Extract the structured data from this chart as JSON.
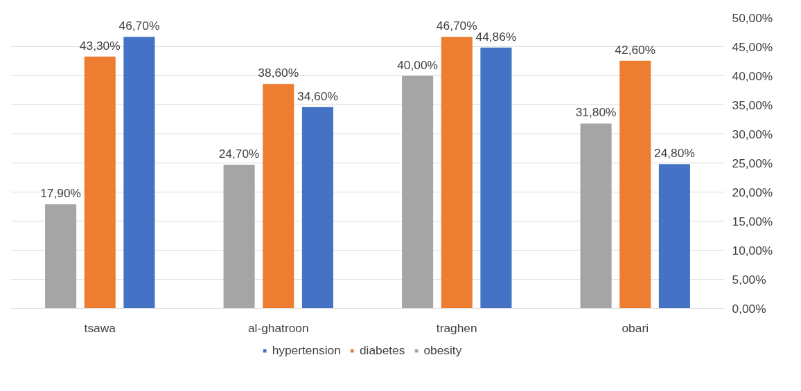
{
  "chart_data": {
    "type": "bar",
    "categories": [
      "tsawa",
      "al-ghatroon",
      "traghen",
      "obari"
    ],
    "series": [
      {
        "name": "hypertension",
        "color": "#4472c4",
        "values": [
          46.7,
          34.6,
          44.86,
          24.8
        ],
        "value_labels": [
          "46,70%",
          "34,60%",
          "44,86%",
          "24,80%"
        ]
      },
      {
        "name": "diabetes",
        "color": "#ed7d31",
        "values": [
          43.3,
          38.6,
          46.7,
          42.6
        ],
        "value_labels": [
          "43,30%",
          "38,60%",
          "46,70%",
          "42,60%"
        ]
      },
      {
        "name": "obesity",
        "color": "#a5a5a5",
        "values": [
          17.9,
          24.7,
          40.0,
          31.8
        ],
        "value_labels": [
          "17,90%",
          "24,70%",
          "40,00%",
          "31,80%"
        ]
      }
    ],
    "ylim": [
      0,
      50
    ],
    "yticks": [
      {
        "value": 0,
        "label": "0,00%"
      },
      {
        "value": 5,
        "label": "5,00%"
      },
      {
        "value": 10,
        "label": "10,00%"
      },
      {
        "value": 15,
        "label": "15,00%"
      },
      {
        "value": 20,
        "label": "20,00%"
      },
      {
        "value": 25,
        "label": "25,00%"
      },
      {
        "value": 30,
        "label": "30,00%"
      },
      {
        "value": 35,
        "label": "35,00%"
      },
      {
        "value": 40,
        "label": "40,00%"
      },
      {
        "value": 45,
        "label": "45,00%"
      },
      {
        "value": 50,
        "label": "50,00%"
      }
    ],
    "grid": "y",
    "legend": "bottom"
  }
}
